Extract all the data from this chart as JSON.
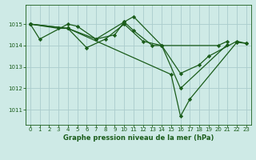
{
  "bg_color": "#ceeae6",
  "grid_color": "#aacccc",
  "line_color": "#1a5c1a",
  "marker": "D",
  "markersize": 2.2,
  "linewidth": 0.9,
  "xlabel": "Graphe pression niveau de la mer (hPa)",
  "xlabel_fontsize": 6.0,
  "tick_fontsize": 5.0,
  "ylabel_ticks": [
    1011,
    1012,
    1013,
    1014,
    1015
  ],
  "xlim": [
    -0.5,
    23.5
  ],
  "ylim": [
    1010.3,
    1015.9
  ],
  "xticks": [
    0,
    1,
    2,
    3,
    4,
    5,
    6,
    7,
    8,
    9,
    10,
    11,
    12,
    13,
    14,
    15,
    16,
    17,
    18,
    19,
    20,
    21,
    22,
    23
  ],
  "series": [
    {
      "x": [
        0,
        1,
        4,
        5,
        7,
        9,
        10,
        11,
        13,
        14,
        20,
        21
      ],
      "y": [
        1015.0,
        1014.3,
        1015.0,
        1014.9,
        1014.3,
        1014.5,
        1015.1,
        1014.7,
        1014.0,
        1014.0,
        1014.0,
        1014.2
      ]
    },
    {
      "x": [
        0,
        3,
        4,
        6,
        8,
        10,
        12,
        14,
        16,
        18,
        19,
        22,
        23
      ],
      "y": [
        1015.0,
        1014.8,
        1014.8,
        1013.9,
        1014.3,
        1015.0,
        1014.2,
        1014.0,
        1012.7,
        1013.1,
        1013.5,
        1014.2,
        1014.1
      ]
    },
    {
      "x": [
        0,
        4,
        7,
        10,
        11,
        14,
        16,
        21
      ],
      "y": [
        1015.0,
        1014.8,
        1014.3,
        1015.1,
        1015.35,
        1014.0,
        1012.0,
        1014.05
      ]
    },
    {
      "x": [
        0,
        4,
        15,
        16,
        17,
        22,
        23
      ],
      "y": [
        1015.0,
        1014.8,
        1012.65,
        1010.7,
        1011.5,
        1014.15,
        1014.1
      ]
    }
  ]
}
